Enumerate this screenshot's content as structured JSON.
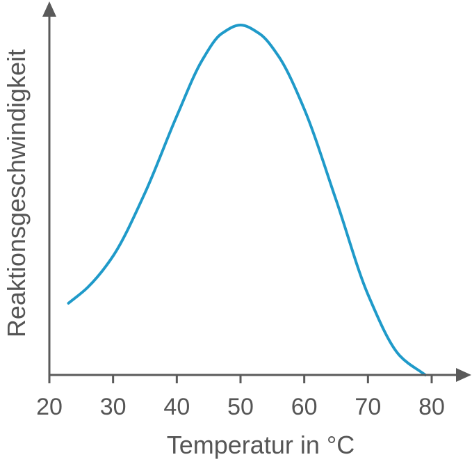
{
  "chart_data": {
    "type": "line",
    "title": "",
    "xlabel": "Temperatur in °C",
    "ylabel": "Reaktionsgeschwindigkeit",
    "xlim": [
      20,
      80
    ],
    "ylim": [
      0,
      1
    ],
    "x_ticks": [
      "20",
      "30",
      "40",
      "50",
      "60",
      "70",
      "80"
    ],
    "y_ticks": [],
    "grid": false,
    "legend": "none",
    "colors": {
      "axis": "#5a5a5a",
      "text": "#555555",
      "curve": "#1f9ac9"
    },
    "series": [
      {
        "x": [
          23,
          26,
          30,
          35,
          40,
          44,
          47,
          50,
          53,
          56,
          60,
          65,
          70,
          75,
          79
        ],
        "y": [
          0.205,
          0.25,
          0.34,
          0.52,
          0.74,
          0.9,
          0.975,
          1.0,
          0.975,
          0.91,
          0.76,
          0.5,
          0.23,
          0.055,
          0.0
        ]
      }
    ]
  }
}
